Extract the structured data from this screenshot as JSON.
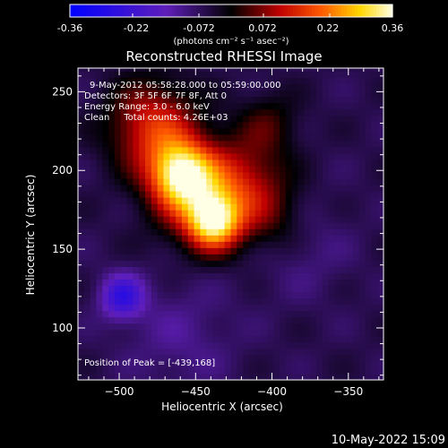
{
  "colorbar": {
    "tick_labels": [
      "-0.36",
      "-0.22",
      "-0.072",
      "0.072",
      "0.22",
      "0.36"
    ],
    "unit_label": "(photons cm⁻² s⁻¹ asec⁻²)",
    "min": -0.36,
    "max": 0.36
  },
  "chart_data": {
    "type": "heatmap",
    "title": "Reconstructed RHESSI Image",
    "xlabel": "Heliocentric X (arcsec)",
    "ylabel": "Heliocentric Y (arcsec)",
    "xlim": [
      -527,
      -327
    ],
    "ylim": [
      67,
      265
    ],
    "x_ticks": [
      -500,
      -450,
      -400,
      -350
    ],
    "y_ticks": [
      100,
      150,
      200,
      250
    ],
    "x_tick_labels": [
      "−500",
      "−450",
      "−400",
      "−350"
    ],
    "y_tick_labels": [
      "100",
      "150",
      "200",
      "250"
    ],
    "info_lines": [
      "9-May-2012 05:58:28.000 to 05:59:00.000",
      "Detectors: 3F 5F 6F 7F 8F, Att 0",
      "Energy Range: 3.0 - 6.0 keV",
      "Clean     Total counts: 4.26E+03"
    ],
    "peak_label": "Position of Peak = [-439,168]",
    "peak": [
      -439,
      168
    ],
    "sources": [
      {
        "x": -460,
        "y": 198,
        "amp": 0.3,
        "sigma": 14
      },
      {
        "x": -438,
        "y": 168,
        "amp": 0.32,
        "sigma": 12
      },
      {
        "x": -478,
        "y": 228,
        "amp": 0.2,
        "sigma": 20
      },
      {
        "x": -445,
        "y": 185,
        "amp": 0.2,
        "sigma": 22
      },
      {
        "x": -415,
        "y": 195,
        "amp": 0.1,
        "sigma": 18
      },
      {
        "x": -400,
        "y": 170,
        "amp": 0.08,
        "sigma": 16
      },
      {
        "x": -402,
        "y": 230,
        "amp": 0.08,
        "sigma": 14
      },
      {
        "x": -498,
        "y": 120,
        "amp": -0.18,
        "sigma": 10
      },
      {
        "x": -460,
        "y": 95,
        "amp": -0.05,
        "sigma": 25
      },
      {
        "x": -380,
        "y": 150,
        "amp": -0.04,
        "sigma": 22
      }
    ],
    "background": -0.06
  },
  "footer": {
    "timestamp": "10-May-2022 15:09"
  }
}
